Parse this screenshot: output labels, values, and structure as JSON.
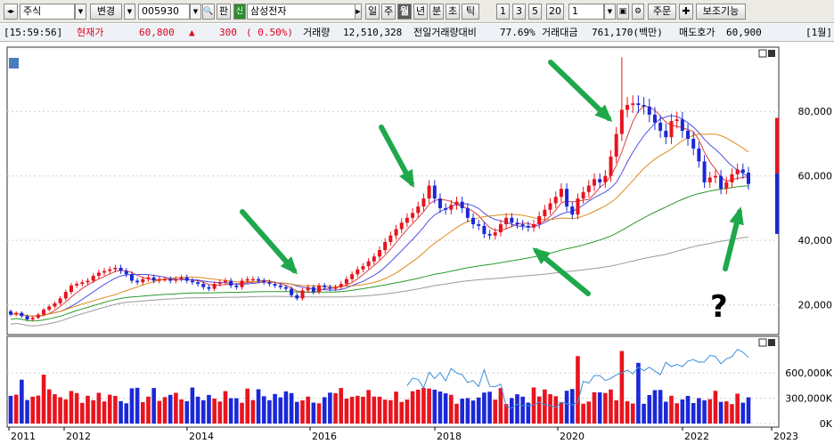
{
  "toolbar": {
    "market": "주식",
    "change_btn": "변경",
    "code": "005930",
    "pan_btn": "판",
    "new_badge": "신",
    "name": "삼성전자",
    "periods": [
      "일",
      "주",
      "월",
      "년",
      "분",
      "초",
      "틱"
    ],
    "selected_period": "월",
    "nums": [
      "1",
      "3",
      "5",
      "20"
    ],
    "count": "1",
    "order_btn": "주문",
    "aux_btn": "보조기능"
  },
  "status": {
    "time": "[15:59:56]",
    "price_label": "현재가",
    "price": "60,800",
    "arrow": "▲",
    "change": "300",
    "change_pct": "( 0.50%)",
    "volume_label": "거래량",
    "volume": "12,510,328",
    "prev_ratio_label": "전일거래량대비",
    "prev_ratio": "77.69%",
    "amount_label": "거래대금",
    "amount": "761,170(백만)",
    "ask_label": "매도호가",
    "ask": "60,900",
    "right_label": "[1월]"
  },
  "chart_data": {
    "type": "candlestick",
    "price_ticks": [
      "80,000",
      "60,000",
      "40,000",
      "20,000"
    ],
    "price_tick_values": [
      80000,
      60000,
      40000,
      20000
    ],
    "price_range": [
      13000,
      98000
    ],
    "volume_ticks": [
      "600,000K",
      "300,000K",
      "0K"
    ],
    "volume_tick_values": [
      600000,
      300000,
      0
    ],
    "x_labels": [
      "2011",
      "2012",
      "2014",
      "2016",
      "2018",
      "2020",
      "2022",
      "2023"
    ],
    "price_closes": [
      17000,
      17500,
      16500,
      15500,
      16000,
      17000,
      18500,
      19500,
      20500,
      22000,
      24000,
      26000,
      26500,
      27000,
      27500,
      29000,
      30000,
      30500,
      31000,
      31500,
      30500,
      29500,
      27500,
      27000,
      28000,
      28500,
      27500,
      28000,
      28000,
      27500,
      28000,
      28500,
      27500,
      27000,
      26500,
      25500,
      25000,
      26500,
      27000,
      27500,
      26000,
      25500,
      27500,
      28000,
      28000,
      27500,
      27000,
      26500,
      26000,
      25500,
      25000,
      23000,
      22000,
      24500,
      25500,
      24000,
      26000,
      25500,
      25000,
      25500,
      26500,
      28000,
      29500,
      31000,
      32000,
      33500,
      35000,
      37000,
      39500,
      41500,
      43500,
      45500,
      47000,
      48500,
      50500,
      53000,
      57000,
      53000,
      50000,
      49500,
      51000,
      52000,
      50000,
      47000,
      45000,
      44500,
      42000,
      41500,
      42500,
      45000,
      47000,
      45500,
      45000,
      44500,
      44000,
      45000,
      47500,
      49500,
      51500,
      53500,
      56000,
      50500,
      48000,
      53000,
      55000,
      57000,
      59000,
      58000,
      60000,
      66000,
      73000,
      80500,
      82000,
      82500,
      82000,
      81500,
      79000,
      76500,
      74000,
      72000,
      77000,
      77500,
      74000,
      71500,
      68500,
      64500,
      58000,
      59500,
      60000,
      56000,
      58000,
      60500,
      62000,
      61000,
      57500
    ],
    "price_opens": [
      18000,
      17000,
      17500,
      16500,
      15500,
      16000,
      17000,
      18500,
      19500,
      20500,
      22000,
      24000,
      26000,
      26500,
      27000,
      27500,
      29000,
      30000,
      30500,
      31000,
      31500,
      30500,
      29500,
      27500,
      27000,
      28000,
      28500,
      27500,
      28000,
      28000,
      27500,
      28000,
      28500,
      27500,
      27000,
      26500,
      25500,
      25000,
      26500,
      27000,
      27500,
      26000,
      25500,
      27500,
      28000,
      28000,
      27500,
      27000,
      26500,
      26000,
      25500,
      25000,
      23000,
      22000,
      24500,
      25500,
      24000,
      26000,
      25500,
      25000,
      25500,
      26500,
      28000,
      29500,
      31000,
      32000,
      33500,
      35000,
      37000,
      39500,
      41500,
      43500,
      45500,
      47000,
      48500,
      50500,
      53000,
      57000,
      53000,
      50000,
      49500,
      51000,
      52000,
      50000,
      47000,
      45000,
      44500,
      42000,
      41500,
      42500,
      45000,
      47000,
      45500,
      45000,
      44500,
      44000,
      45000,
      47500,
      49500,
      51500,
      53500,
      56000,
      50500,
      48000,
      53000,
      55000,
      57000,
      59000,
      58000,
      60000,
      66000,
      73000,
      80500,
      82000,
      82500,
      82000,
      81500,
      79000,
      76500,
      74000,
      72000,
      77000,
      77500,
      74000,
      71500,
      68500,
      64500,
      58000,
      59500,
      60000,
      56000,
      58000,
      60500,
      62000,
      61000
    ],
    "highs_extra": {
      "111": 96800
    },
    "ma_series": [
      {
        "color": "#e03c3c",
        "period": 5
      },
      {
        "color": "#5050e0",
        "period": 10
      },
      {
        "color": "#e08a1a",
        "period": 20
      },
      {
        "color": "#2a9a2a",
        "period": 60
      },
      {
        "color": "#9a9a9a",
        "period": 120
      }
    ],
    "volume_curve_color": "#3a8fd8",
    "annotation": "?",
    "arrow_color": "#1ea84b"
  }
}
